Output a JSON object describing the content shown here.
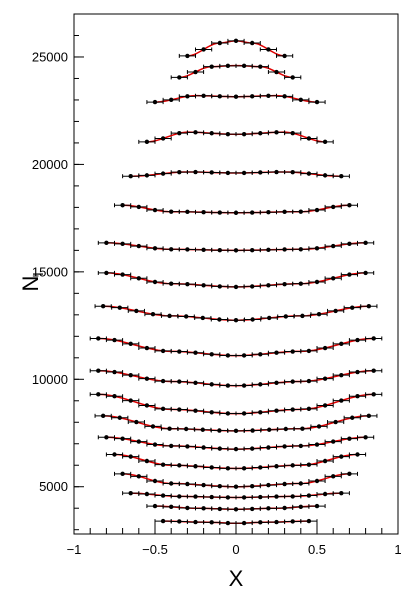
{
  "chart_data": {
    "type": "scatter",
    "title": "",
    "xlabel": "X",
    "ylabel": "N",
    "ylabel_subscript": "l",
    "xlim": [
      -1,
      1
    ],
    "ylim": [
      2800,
      27000
    ],
    "x_ticks": [
      -1,
      -0.5,
      0,
      0.5,
      1
    ],
    "x_tick_labels": [
      "−1",
      "−0.5",
      "0",
      "0.5",
      "1"
    ],
    "y_ticks": [
      5000,
      10000,
      15000,
      20000,
      25000
    ],
    "y_tick_labels": [
      "5000",
      "10000",
      "15000",
      "20000",
      "25000"
    ],
    "grid": false,
    "marker_color": "#000000",
    "fit_color": "#e00000",
    "x_error": 0.05,
    "bands": [
      {
        "xmin": -0.45,
        "xmax": 0.45,
        "points": [
          [
            -0.45,
            3400
          ],
          [
            -0.2,
            3350
          ],
          [
            0.0,
            3300
          ],
          [
            0.2,
            3350
          ],
          [
            0.45,
            3400
          ]
        ]
      },
      {
        "xmin": -0.5,
        "xmax": 0.5,
        "points": [
          [
            -0.5,
            4100
          ],
          [
            -0.25,
            4000
          ],
          [
            0.0,
            3950
          ],
          [
            0.25,
            4000
          ],
          [
            0.5,
            4100
          ]
        ]
      },
      {
        "xmin": -0.65,
        "xmax": 0.65,
        "points": [
          [
            -0.65,
            4700
          ],
          [
            -0.35,
            4550
          ],
          [
            0.0,
            4500
          ],
          [
            0.35,
            4550
          ],
          [
            0.65,
            4700
          ]
        ]
      },
      {
        "xmin": -0.7,
        "xmax": 0.7,
        "points": [
          [
            -0.7,
            5600
          ],
          [
            -0.4,
            5150
          ],
          [
            0.0,
            5000
          ],
          [
            0.4,
            5150
          ],
          [
            0.7,
            5600
          ]
        ]
      },
      {
        "xmin": -0.75,
        "xmax": 0.75,
        "points": [
          [
            -0.75,
            6500
          ],
          [
            -0.4,
            6000
          ],
          [
            0.0,
            5850
          ],
          [
            0.4,
            6000
          ],
          [
            0.75,
            6500
          ]
        ]
      },
      {
        "xmin": -0.8,
        "xmax": 0.8,
        "points": [
          [
            -0.8,
            7300
          ],
          [
            -0.4,
            6900
          ],
          [
            0.0,
            6750
          ],
          [
            0.4,
            6900
          ],
          [
            0.8,
            7300
          ]
        ]
      },
      {
        "xmin": -0.82,
        "xmax": 0.82,
        "points": [
          [
            -0.82,
            8300
          ],
          [
            -0.4,
            7700
          ],
          [
            0.0,
            7600
          ],
          [
            0.4,
            7700
          ],
          [
            0.82,
            8300
          ]
        ]
      },
      {
        "xmin": -0.85,
        "xmax": 0.85,
        "points": [
          [
            -0.85,
            9300
          ],
          [
            -0.4,
            8600
          ],
          [
            0.0,
            8400
          ],
          [
            0.4,
            8600
          ],
          [
            0.85,
            9300
          ]
        ]
      },
      {
        "xmin": -0.85,
        "xmax": 0.85,
        "points": [
          [
            -0.85,
            10400
          ],
          [
            -0.4,
            9900
          ],
          [
            0.0,
            9700
          ],
          [
            0.4,
            9900
          ],
          [
            0.85,
            10400
          ]
        ]
      },
      {
        "xmin": -0.85,
        "xmax": 0.85,
        "points": [
          [
            -0.85,
            11900
          ],
          [
            -0.4,
            11300
          ],
          [
            0.0,
            11100
          ],
          [
            0.4,
            11300
          ],
          [
            0.85,
            11900
          ]
        ]
      },
      {
        "xmin": -0.82,
        "xmax": 0.82,
        "points": [
          [
            -0.82,
            13400
          ],
          [
            -0.4,
            12950
          ],
          [
            0.0,
            12750
          ],
          [
            0.4,
            12950
          ],
          [
            0.82,
            13400
          ]
        ]
      },
      {
        "xmin": -0.8,
        "xmax": 0.8,
        "points": [
          [
            -0.8,
            14950
          ],
          [
            -0.4,
            14450
          ],
          [
            0.0,
            14300
          ],
          [
            0.4,
            14450
          ],
          [
            0.8,
            14950
          ]
        ]
      },
      {
        "xmin": -0.8,
        "xmax": 0.8,
        "points": [
          [
            -0.8,
            16350
          ],
          [
            -0.4,
            16050
          ],
          [
            0.0,
            16000
          ],
          [
            0.4,
            16050
          ],
          [
            0.8,
            16350
          ]
        ]
      },
      {
        "xmin": -0.7,
        "xmax": 0.7,
        "points": [
          [
            -0.7,
            18100
          ],
          [
            -0.4,
            17800
          ],
          [
            0.0,
            17750
          ],
          [
            0.4,
            17800
          ],
          [
            0.7,
            18100
          ]
        ]
      },
      {
        "xmin": -0.65,
        "xmax": 0.65,
        "points": [
          [
            -0.65,
            19450
          ],
          [
            -0.3,
            19650
          ],
          [
            0.0,
            19600
          ],
          [
            0.3,
            19650
          ],
          [
            0.65,
            19450
          ]
        ]
      },
      {
        "xmin": -0.55,
        "xmax": 0.55,
        "points": [
          [
            -0.55,
            21050
          ],
          [
            -0.3,
            21500
          ],
          [
            0.0,
            21400
          ],
          [
            0.3,
            21500
          ],
          [
            0.55,
            21050
          ]
        ]
      },
      {
        "xmin": -0.5,
        "xmax": 0.5,
        "points": [
          [
            -0.5,
            22900
          ],
          [
            -0.25,
            23200
          ],
          [
            0.0,
            23150
          ],
          [
            0.25,
            23200
          ],
          [
            0.5,
            22900
          ]
        ]
      },
      {
        "xmin": -0.35,
        "xmax": 0.35,
        "points": [
          [
            -0.35,
            24050
          ],
          [
            -0.15,
            24550
          ],
          [
            0.0,
            24600
          ],
          [
            0.15,
            24550
          ],
          [
            0.35,
            24050
          ]
        ]
      },
      {
        "xmin": -0.3,
        "xmax": 0.3,
        "points": [
          [
            -0.3,
            25050
          ],
          [
            -0.1,
            25650
          ],
          [
            0.0,
            25750
          ],
          [
            0.1,
            25650
          ],
          [
            0.3,
            25050
          ]
        ]
      }
    ]
  }
}
